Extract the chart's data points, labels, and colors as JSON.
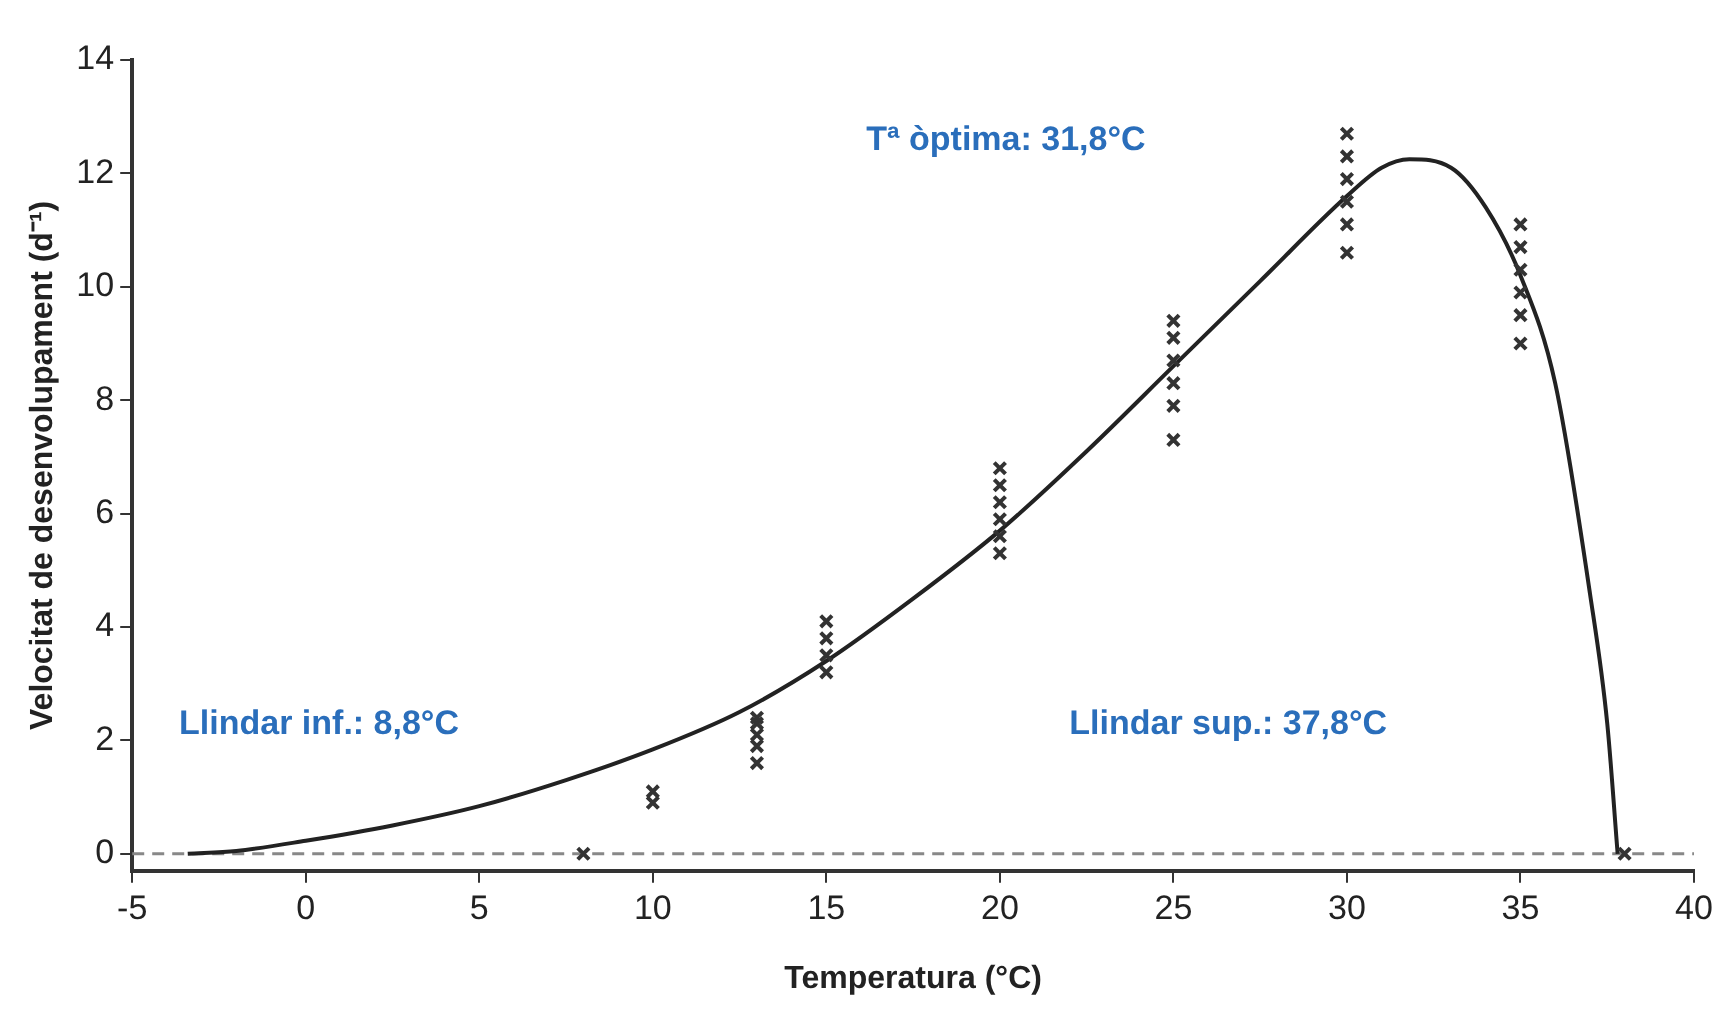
{
  "chart_data": {
    "type": "scatter",
    "xlabel": "Temperatura (°C)",
    "ylabel": "Velocitat de desenvolupament (d⁻¹)",
    "xlim": [
      -5,
      40
    ],
    "xticks": [
      -5,
      0,
      5,
      10,
      15,
      20,
      25,
      30,
      35,
      40
    ],
    "ylim": [
      -0.3,
      14
    ],
    "yticks": [
      0,
      2,
      4,
      6,
      8,
      10,
      12,
      14
    ],
    "grid": false,
    "legend": false,
    "marker": "cross",
    "annotations": [
      "Tª òptima: 31,8°C",
      "Llindar inf.: 8,8°C",
      "Llindar sup.: 37,8°C"
    ],
    "ref_lines": [
      {
        "axis": "y",
        "value": 0,
        "line_style": "dashed",
        "color": "#888888"
      }
    ],
    "series": [
      {
        "color": "#333333",
        "x": [
          8,
          10,
          10,
          13,
          13,
          13,
          13,
          13,
          15,
          15,
          15,
          15,
          20,
          20,
          20,
          20,
          20,
          20,
          25,
          25,
          25,
          25,
          25,
          25,
          30,
          30,
          30,
          30,
          30,
          30,
          35,
          35,
          35,
          35,
          35,
          35,
          38
        ],
        "values": [
          0,
          0.9,
          1.1,
          1.6,
          1.9,
          2.1,
          2.3,
          2.4,
          3.2,
          3.5,
          3.8,
          4.1,
          5.3,
          5.6,
          5.9,
          6.2,
          6.5,
          6.8,
          7.3,
          7.9,
          8.3,
          8.7,
          9.1,
          9.4,
          10.6,
          11.1,
          11.5,
          11.9,
          12.3,
          12.7,
          9.0,
          9.5,
          9.9,
          10.3,
          10.7,
          11.1,
          0
        ]
      },
      {
        "type": "line",
        "color": "#222222",
        "marker": "none",
        "x": [
          -3.4,
          -2,
          0,
          2.5,
          5,
          7.5,
          10,
          12.5,
          15,
          17.5,
          20,
          22.5,
          25,
          27.5,
          30,
          31,
          31.8,
          33,
          34,
          35,
          36,
          37,
          37.5,
          37.8
        ],
        "values": [
          0,
          0.05,
          0.23,
          0.5,
          0.84,
          1.3,
          1.84,
          2.5,
          3.4,
          4.5,
          5.7,
          7.1,
          8.6,
          10.1,
          11.6,
          12.1,
          12.25,
          12.1,
          11.4,
          10.2,
          8.3,
          4.6,
          2.3,
          0
        ]
      }
    ]
  }
}
